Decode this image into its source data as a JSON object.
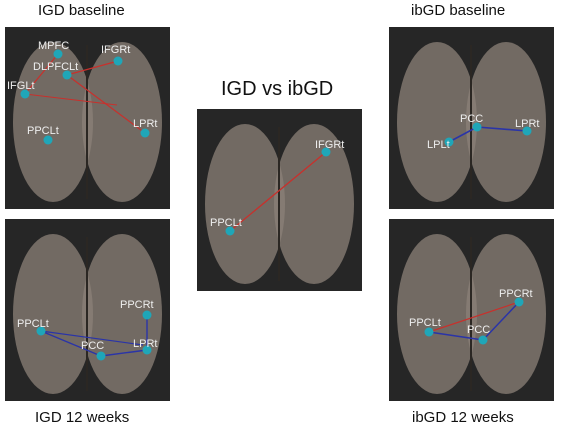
{
  "colors": {
    "background": "#ffffff",
    "panel": "#262626",
    "brain": "#8c8178",
    "node": "#1fa6b8",
    "edge_red": "#c8302c",
    "edge_blue": "#2a34a8"
  },
  "panels": {
    "igd_baseline": {
      "title": "IGD baseline",
      "nodes": {
        "mpfc": "MPFC",
        "dlpfc": "DLPFCLt",
        "ifglt": "IFGLt",
        "ifgrt": "IFGRt",
        "ppclt": "PPCLt",
        "lprt": "LPRt"
      }
    },
    "igd_12": {
      "title": "IGD 12 weeks",
      "nodes": {
        "ppclt": "PPCLt",
        "pcc": "PCC",
        "lprt": "LPRt",
        "ppcrt": "PPCRt"
      }
    },
    "compare": {
      "title": "IGD vs ibGD",
      "nodes": {
        "ifgrt": "IFGRt",
        "ppclt": "PPCLt"
      }
    },
    "ibgd_baseline": {
      "title": "ibGD baseline",
      "nodes": {
        "pcc": "PCC",
        "lplt": "LPLt",
        "lprt": "LPRt"
      }
    },
    "ibgd_12": {
      "title": "ibGD  12 weeks",
      "nodes": {
        "ppcrt": "PPCRt",
        "ppclt": "PPCLt",
        "pcc": "PCC"
      }
    }
  }
}
